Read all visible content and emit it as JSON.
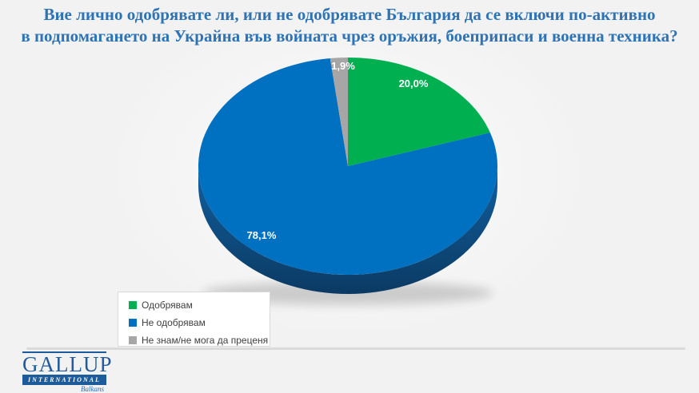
{
  "title": {
    "line1": "Вие лично одобрявате ли, или не одобрявате България да се включи по-активно",
    "line2": "в подпомагането на Украйна във войната чрез оръжия, боеприпаси и военна техника?"
  },
  "chart_data": {
    "type": "pie",
    "style": "3d",
    "start_angle_deg": 0,
    "direction": "clockwise",
    "title": "Вие лично одобрявате ли, или не одобрявате България да се включи по-активно в подпомагането на Украйна във войната чрез оръжия, боеприпаси и военна техника?",
    "slices": [
      {
        "label": "Одобрявам",
        "value": 20.0,
        "display": "20,0%",
        "color": "#00B050"
      },
      {
        "label": "Не одобрявам",
        "value": 78.1,
        "display": "78,1%",
        "color": "#0070C0"
      },
      {
        "label": "Не знам/не мога да преценя",
        "value": 1.9,
        "display": "1,9%",
        "color": "#A6A6A6"
      }
    ],
    "legend_position": "bottom-left"
  },
  "colors": {
    "background": "#F2F2F2",
    "title_text": "#2E74B5",
    "pie_side_top": "#11609F",
    "pie_side_bottom": "#0B3A63",
    "legend_border": "#D9D9D9",
    "legend_text": "#3F3F3F",
    "separator": "#DADADA",
    "logo_blue": "#1D5C9A",
    "data_label_text": "#FFFFFF"
  },
  "logo": {
    "line1": "GALLUP",
    "line2": "INTERNATIONAL",
    "line3": "Balkans"
  }
}
